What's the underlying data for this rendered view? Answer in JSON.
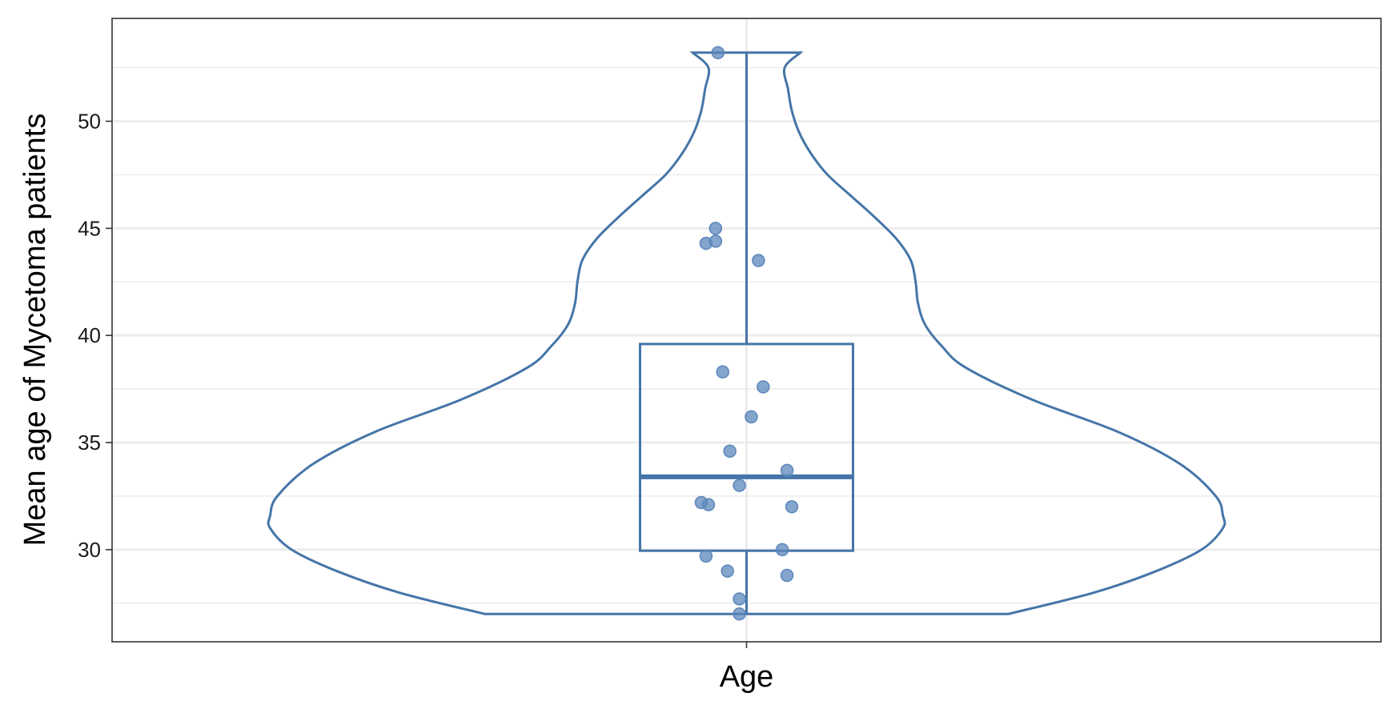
{
  "chart_data": {
    "type": "violin",
    "title": "",
    "xlabel": "",
    "ylabel": "Mean age of Mycetoma patients",
    "categories": [
      "Age"
    ],
    "ylim": [
      25.7,
      54.8
    ],
    "yticks": [
      30,
      35,
      40,
      45,
      50
    ],
    "grid": true,
    "color": "#4575a8",
    "point_color": "#5b87bb",
    "box": {
      "q1": 29.95,
      "median": 33.4,
      "q3": 39.6,
      "whisker_low": 27.0,
      "whisker_high": 53.2
    },
    "violin": {
      "min": 27.0,
      "max": 53.2,
      "density_profile": [
        {
          "y": 27.0,
          "w": 0.55
        },
        {
          "y": 28.0,
          "w": 0.73
        },
        {
          "y": 29.0,
          "w": 0.86
        },
        {
          "y": 30.0,
          "w": 0.955
        },
        {
          "y": 31.0,
          "w": 1.0
        },
        {
          "y": 31.6,
          "w": 1.0
        },
        {
          "y": 32.5,
          "w": 0.985
        },
        {
          "y": 34.0,
          "w": 0.91
        },
        {
          "y": 35.5,
          "w": 0.78
        },
        {
          "y": 37.0,
          "w": 0.6
        },
        {
          "y": 38.5,
          "w": 0.46
        },
        {
          "y": 39.5,
          "w": 0.41
        },
        {
          "y": 40.5,
          "w": 0.375
        },
        {
          "y": 41.5,
          "w": 0.36
        },
        {
          "y": 42.5,
          "w": 0.355
        },
        {
          "y": 43.5,
          "w": 0.345
        },
        {
          "y": 44.5,
          "w": 0.315
        },
        {
          "y": 45.5,
          "w": 0.27
        },
        {
          "y": 46.5,
          "w": 0.22
        },
        {
          "y": 47.5,
          "w": 0.17
        },
        {
          "y": 48.5,
          "w": 0.135
        },
        {
          "y": 49.5,
          "w": 0.11
        },
        {
          "y": 50.5,
          "w": 0.095
        },
        {
          "y": 51.5,
          "w": 0.087
        },
        {
          "y": 52.5,
          "w": 0.08
        },
        {
          "y": 53.2,
          "w": 0.113
        }
      ]
    },
    "points": [
      {
        "jitter": -0.12,
        "y": 53.2
      },
      {
        "jitter": -0.13,
        "y": 45.0
      },
      {
        "jitter": -0.13,
        "y": 44.4
      },
      {
        "jitter": -0.17,
        "y": 44.3
      },
      {
        "jitter": 0.05,
        "y": 43.5
      },
      {
        "jitter": -0.1,
        "y": 38.3
      },
      {
        "jitter": 0.07,
        "y": 37.6
      },
      {
        "jitter": 0.02,
        "y": 36.2
      },
      {
        "jitter": -0.07,
        "y": 34.6
      },
      {
        "jitter": 0.17,
        "y": 33.7
      },
      {
        "jitter": -0.03,
        "y": 33.0
      },
      {
        "jitter": -0.19,
        "y": 32.2
      },
      {
        "jitter": -0.16,
        "y": 32.1
      },
      {
        "jitter": 0.19,
        "y": 32.0
      },
      {
        "jitter": 0.15,
        "y": 30.0
      },
      {
        "jitter": -0.17,
        "y": 29.7
      },
      {
        "jitter": -0.08,
        "y": 29.0
      },
      {
        "jitter": 0.17,
        "y": 28.8
      },
      {
        "jitter": -0.03,
        "y": 27.7
      },
      {
        "jitter": -0.03,
        "y": 27.0
      }
    ]
  }
}
